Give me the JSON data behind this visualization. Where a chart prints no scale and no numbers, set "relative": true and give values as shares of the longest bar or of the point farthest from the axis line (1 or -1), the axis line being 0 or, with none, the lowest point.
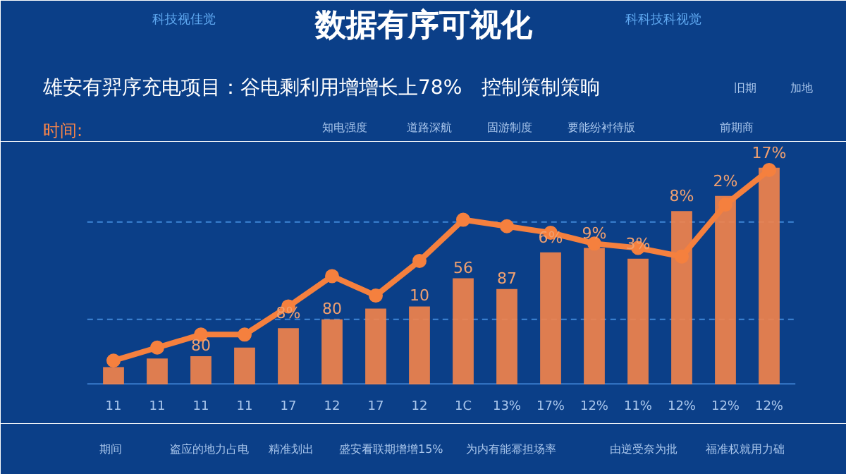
{
  "chart_data": {
    "type": "bar",
    "title": "数据有序可视化",
    "subtitle": "雄安有羿序充电项目：谷电剩利用增增长上78%　控制策制策晌",
    "relative": true,
    "categories": [
      "11",
      "11",
      "11",
      "11",
      "17",
      "12",
      "17",
      "12",
      "1C",
      "13%",
      "17%",
      "12%",
      "11%",
      "12%",
      "12%",
      "12%"
    ],
    "series": [
      {
        "type": "bar",
        "color": "#f5844a",
        "values": [
          0.08,
          0.12,
          0.13,
          0.17,
          0.26,
          0.3,
          0.35,
          0.36,
          0.49,
          0.44,
          0.61,
          0.63,
          0.58,
          0.8,
          0.87,
          1.0
        ]
      },
      {
        "type": "line",
        "color": "#f5803e",
        "marker": "circle",
        "values": [
          0.11,
          0.17,
          0.23,
          0.23,
          0.36,
          0.5,
          0.41,
          0.57,
          0.76,
          0.73,
          0.7,
          0.65,
          0.63,
          0.59,
          0.83,
          0.99
        ]
      }
    ],
    "ref_lines": [
      {
        "axis": "y",
        "value": 0.3,
        "color": "#3f86d6",
        "line_style": "dashed"
      },
      {
        "axis": "y",
        "value": 0.75,
        "color": "#3f86d6",
        "line_style": "dashed"
      }
    ],
    "annotations": [
      "科技视佳觉",
      "科科技科视觉",
      "时间:",
      "知电强度",
      "道路深航",
      "固游制度",
      "要能纷衬待版",
      "前期商",
      "旧期",
      "加地",
      "期间",
      "盗应的地力占电",
      "精准划出",
      "盛安看联期增增15%",
      "为内有能幂担场率",
      "由逆受奈为批",
      "福准权就用力础",
      "80",
      "8%",
      "80",
      "10",
      "56",
      "87",
      "6%",
      "9%",
      "3%",
      "8%",
      "2%",
      "17%"
    ]
  }
}
